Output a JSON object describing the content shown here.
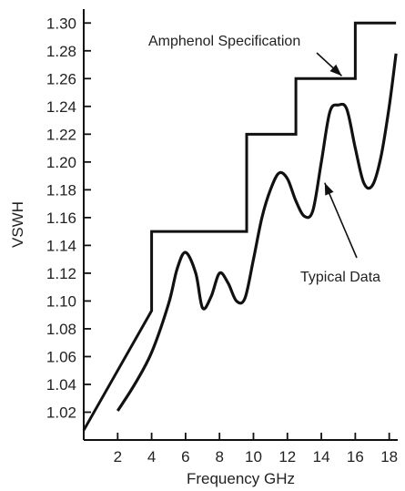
{
  "chart_data": {
    "type": "line",
    "xlabel": "Frequency GHz",
    "ylabel": "VSWH",
    "xlim": [
      0,
      18.5
    ],
    "ylim": [
      1.0,
      1.31
    ],
    "x_ticks": [
      {
        "value": 2,
        "label": "2"
      },
      {
        "value": 4,
        "label": "4"
      },
      {
        "value": 6,
        "label": "6"
      },
      {
        "value": 8,
        "label": "8"
      },
      {
        "value": 10,
        "label": "10"
      },
      {
        "value": 12,
        "label": "12"
      },
      {
        "value": 14,
        "label": "14"
      },
      {
        "value": 16,
        "label": "16"
      },
      {
        "value": 18,
        "label": "18"
      }
    ],
    "y_ticks": [
      {
        "value": 1.02,
        "label": "1.02"
      },
      {
        "value": 1.04,
        "label": "1.04"
      },
      {
        "value": 1.06,
        "label": "1.06"
      },
      {
        "value": 1.08,
        "label": "1.08"
      },
      {
        "value": 1.1,
        "label": "1.10"
      },
      {
        "value": 1.12,
        "label": "1.12"
      },
      {
        "value": 1.14,
        "label": "1.14"
      },
      {
        "value": 1.16,
        "label": "1.16"
      },
      {
        "value": 1.18,
        "label": "1.18"
      },
      {
        "value": 1.2,
        "label": "1.20"
      },
      {
        "value": 1.22,
        "label": "1.22"
      },
      {
        "value": 1.24,
        "label": "1.24"
      },
      {
        "value": 1.26,
        "label": "1.26"
      },
      {
        "value": 1.28,
        "label": "1.28"
      },
      {
        "value": 1.3,
        "label": "1.30"
      }
    ],
    "grid": false,
    "series": [
      {
        "name": "Amphenol Specification",
        "color": "#111111",
        "points": [
          [
            0,
            1.007
          ],
          [
            4,
            1.093
          ],
          [
            4,
            1.15
          ],
          [
            9.6,
            1.15
          ],
          [
            9.6,
            1.22
          ],
          [
            12.5,
            1.22
          ],
          [
            12.5,
            1.26
          ],
          [
            16,
            1.26
          ],
          [
            16,
            1.3
          ],
          [
            18.4,
            1.3
          ]
        ]
      },
      {
        "name": "Typical Data",
        "color": "#111111",
        "points": [
          [
            2.0,
            1.021
          ],
          [
            3.0,
            1.04
          ],
          [
            4.0,
            1.063
          ],
          [
            5.0,
            1.098
          ],
          [
            5.5,
            1.123
          ],
          [
            6.0,
            1.135
          ],
          [
            6.6,
            1.12
          ],
          [
            7.0,
            1.095
          ],
          [
            7.5,
            1.103
          ],
          [
            8.0,
            1.12
          ],
          [
            8.5,
            1.113
          ],
          [
            9.0,
            1.1
          ],
          [
            9.5,
            1.102
          ],
          [
            10.0,
            1.13
          ],
          [
            10.5,
            1.16
          ],
          [
            11.0,
            1.18
          ],
          [
            11.5,
            1.192
          ],
          [
            12.0,
            1.188
          ],
          [
            12.5,
            1.172
          ],
          [
            13.0,
            1.161
          ],
          [
            13.5,
            1.165
          ],
          [
            14.0,
            1.2
          ],
          [
            14.5,
            1.236
          ],
          [
            15.0,
            1.241
          ],
          [
            15.5,
            1.238
          ],
          [
            16.0,
            1.21
          ],
          [
            16.5,
            1.185
          ],
          [
            17.0,
            1.183
          ],
          [
            17.5,
            1.203
          ],
          [
            18.0,
            1.24
          ],
          [
            18.4,
            1.278
          ]
        ]
      }
    ],
    "annotations": [
      {
        "text": "Amphenol Specification",
        "arrow_to": [
          15.2,
          1.262
        ]
      },
      {
        "text": "Typical Data",
        "arrow_to": [
          14.2,
          1.185
        ]
      }
    ]
  }
}
